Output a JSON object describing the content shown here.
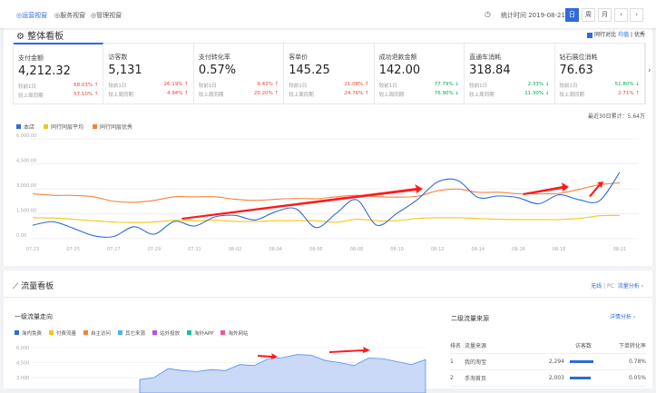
{
  "topbar": {
    "tabs": [
      "◎运营视窗",
      "◎服务视窗",
      "◎管理视窗"
    ],
    "stat_time": "统计时间 2019-08-21",
    "periods": [
      "日",
      "周",
      "月"
    ],
    "prev": "‹",
    "next": "›"
  },
  "overview": {
    "title": "整体看板",
    "compare_label": "同行对比",
    "compare_avg": "均值",
    "compare_sep": "|",
    "compare_best": "优秀",
    "cards": [
      {
        "name": "支付金额",
        "value": "4,212.32",
        "d1_label": "较前1日",
        "d1": "68.03%",
        "d1_dir": "up",
        "w_label": "较上周同期",
        "w": "57.10%",
        "w_dir": "up"
      },
      {
        "name": "访客数",
        "value": "5,131",
        "d1_label": "较前1日",
        "d1": "26.19%",
        "d1_dir": "up",
        "w_label": "较上周同期",
        "w": "4.94%",
        "w_dir": "up"
      },
      {
        "name": "支付转化率",
        "value": "0.57%",
        "d1_label": "较前1日",
        "d1": "9.43%",
        "d1_dir": "up",
        "w_label": "较上周同期",
        "w": "20.20%",
        "w_dir": "up"
      },
      {
        "name": "客单价",
        "value": "145.25",
        "d1_label": "较前1日",
        "d1": "21.08%",
        "d1_dir": "up",
        "w_label": "较上周同期",
        "w": "24.76%",
        "w_dir": "up"
      },
      {
        "name": "成功退款金额",
        "value": "142.00",
        "d1_label": "较前1日",
        "d1": "77.79%",
        "d1_dir": "down",
        "w_label": "较上周同期",
        "w": "76.90%",
        "w_dir": "down"
      },
      {
        "name": "直通车消耗",
        "value": "318.84",
        "d1_label": "较前1日",
        "d1": "2.33%",
        "d1_dir": "down",
        "w_label": "较上周同期",
        "w": "11.30%",
        "w_dir": "down"
      },
      {
        "name": "钻石展位消耗",
        "value": "76.63",
        "d1_label": "较前1日",
        "d1": "51.80%",
        "d1_dir": "down",
        "w_label": "较上周同期",
        "w": "2.71%",
        "w_dir": "up"
      }
    ],
    "total": "最近30日累计：5.64万"
  },
  "colors": {
    "accent": "#2f6bd8",
    "up": "#f04134",
    "down": "#00a854",
    "self": "#2f6bd8",
    "avg": "#f5c518",
    "best": "#f5833a",
    "annotation": "#ff1a1a"
  },
  "chart_data": [
    {
      "type": "line",
      "ylim": [
        0,
        6000
      ],
      "yticks": [
        "0.00",
        "1,500.00",
        "3,000.00",
        "4,500.00",
        "6,000.00"
      ],
      "grid": true,
      "legend": "top-left",
      "categories": [
        "07-23",
        "07-24",
        "07-25",
        "07-26",
        "07-27",
        "07-28",
        "07-29",
        "07-30",
        "07-31",
        "08-01",
        "08-02",
        "08-03",
        "08-04",
        "08-05",
        "08-06",
        "08-07",
        "08-08",
        "08-09",
        "08-10",
        "08-11",
        "08-12",
        "08-13",
        "08-14",
        "08-15",
        "08-16",
        "08-17",
        "08-18",
        "08-19",
        "08-20",
        "08-21"
      ],
      "xticks": [
        "07-23",
        "07-25",
        "07-27",
        "07-29",
        "07-31",
        "08-02",
        "08-04",
        "08-06",
        "08-08",
        "08-10",
        "08-12",
        "08-14",
        "08-16",
        "08-18",
        "08-21"
      ],
      "series": [
        {
          "name": "本店",
          "values": [
            810,
            1020,
            630,
            180,
            130,
            720,
            270,
            1040,
            760,
            1310,
            1400,
            1130,
            1620,
            1800,
            670,
            1530,
            2340,
            810,
            1530,
            2340,
            3410,
            3500,
            2480,
            2570,
            2460,
            2100,
            2640,
            2340,
            2280,
            3990
          ]
        },
        {
          "name": "同行同层平均",
          "values": [
            1260,
            1250,
            1170,
            1080,
            1000,
            970,
            1000,
            1110,
            1080,
            1110,
            1040,
            1040,
            1080,
            1080,
            1080,
            990,
            1170,
            1080,
            1080,
            1220,
            1260,
            1260,
            1220,
            1170,
            1150,
            1150,
            1150,
            1220,
            1380,
            1400
          ]
        },
        {
          "name": "同行同层优秀",
          "values": [
            2700,
            2610,
            2600,
            2520,
            2250,
            2190,
            2300,
            2520,
            2510,
            2520,
            2370,
            2300,
            2370,
            2420,
            2400,
            2520,
            2610,
            2520,
            2500,
            2550,
            2880,
            2980,
            2790,
            2790,
            2700,
            2700,
            2720,
            2970,
            3240,
            3360
          ]
        }
      ]
    },
    {
      "type": "area",
      "ylim": [
        0,
        6000
      ],
      "yticks": [
        "3,000",
        "4,500",
        "6,000"
      ],
      "grid": true,
      "legend": "top-left",
      "series": [
        {
          "name": "淘内免费",
          "values": [
            2800,
            3000,
            3900,
            3700,
            3600,
            3800,
            3700,
            4300,
            4200,
            4900,
            5000,
            5300,
            5250,
            4700,
            4500,
            4200,
            4950,
            4900,
            4600,
            4300,
            4800
          ]
        }
      ]
    }
  ],
  "traffic": {
    "title": "流量看板",
    "wireless": "无线",
    "sep": "|",
    "pc": "PC",
    "analysis": "流量分析 ›",
    "level1_title": "一级流量走向",
    "level1_legend": [
      {
        "name": "淘内免费",
        "color": "#2f6bd8"
      },
      {
        "name": "付费流量",
        "color": "#f5c518"
      },
      {
        "name": "自主访问",
        "color": "#f5833a"
      },
      {
        "name": "其它来源",
        "color": "#4fb3f6"
      },
      {
        "name": "站外投放",
        "color": "#a855f7"
      },
      {
        "name": "淘外APP",
        "color": "#13c2a3"
      },
      {
        "name": "淘外网站",
        "color": "#f0569b"
      }
    ],
    "level2_title": "二级流量来源",
    "detail": "详情分析 ›",
    "columns": [
      "排名",
      "流量来源",
      "访客数",
      "下单转化率"
    ],
    "rows": [
      {
        "rank": "1",
        "source": "我的淘宝",
        "visitors": "2,294",
        "share": 1.0,
        "conv": "0.78%"
      },
      {
        "rank": "2",
        "source": "手淘首页",
        "visitors": "2,003",
        "share": 0.87,
        "conv": "0.05%"
      }
    ]
  }
}
